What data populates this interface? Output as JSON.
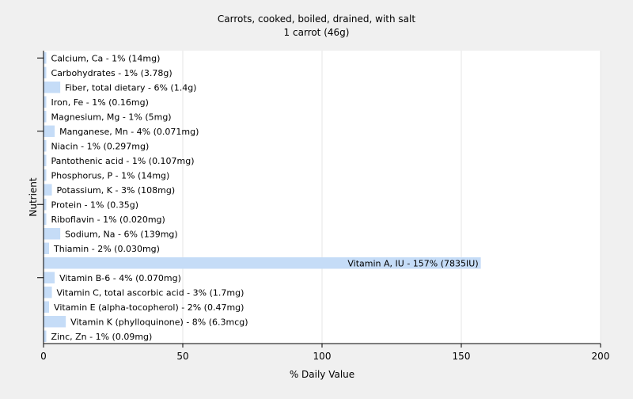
{
  "chart_data": {
    "type": "bar",
    "orientation": "horizontal",
    "title": "Carrots, cooked, boiled, drained, with salt",
    "subtitle": "1 carrot (46g)",
    "xlabel": "% Daily Value",
    "ylabel": "Nutrient",
    "xlim": [
      0,
      200
    ],
    "xticks": [
      "0",
      "50",
      "100",
      "150",
      "200"
    ],
    "grid": true,
    "legend": "none",
    "bar_color": "#c5dcf7",
    "categories": [
      "Calcium, Ca",
      "Carbohydrates",
      "Fiber, total dietary",
      "Iron, Fe",
      "Magnesium, Mg",
      "Manganese, Mn",
      "Niacin",
      "Pantothenic acid",
      "Phosphorus, P",
      "Potassium, K",
      "Protein",
      "Riboflavin",
      "Sodium, Na",
      "Thiamin",
      "Vitamin A, IU",
      "Vitamin B-6",
      "Vitamin C, total ascorbic acid",
      "Vitamin E (alpha-tocopherol)",
      "Vitamin K (phylloquinone)",
      "Zinc, Zn"
    ],
    "values": [
      1,
      1,
      6,
      1,
      1,
      4,
      1,
      1,
      1,
      3,
      1,
      1,
      6,
      2,
      157,
      4,
      3,
      2,
      8,
      1
    ],
    "labels": [
      "Calcium, Ca - 1% (14mg)",
      "Carbohydrates - 1% (3.78g)",
      "Fiber, total dietary - 6% (1.4g)",
      "Iron, Fe - 1% (0.16mg)",
      "Magnesium, Mg - 1% (5mg)",
      "Manganese, Mn - 4% (0.071mg)",
      "Niacin - 1% (0.297mg)",
      "Pantothenic acid - 1% (0.107mg)",
      "Phosphorus, P - 1% (14mg)",
      "Potassium, K - 3% (108mg)",
      "Protein - 1% (0.35g)",
      "Riboflavin - 1% (0.020mg)",
      "Sodium, Na - 6% (139mg)",
      "Thiamin - 2% (0.030mg)",
      "Vitamin A, IU - 157% (7835IU)",
      "Vitamin B-6 - 4% (0.070mg)",
      "Vitamin C, total ascorbic acid - 3% (1.7mg)",
      "Vitamin E (alpha-tocopherol) - 2% (0.47mg)",
      "Vitamin K (phylloquinone) - 8% (6.3mcg)",
      "Zinc, Zn - 1% (0.09mg)"
    ]
  }
}
